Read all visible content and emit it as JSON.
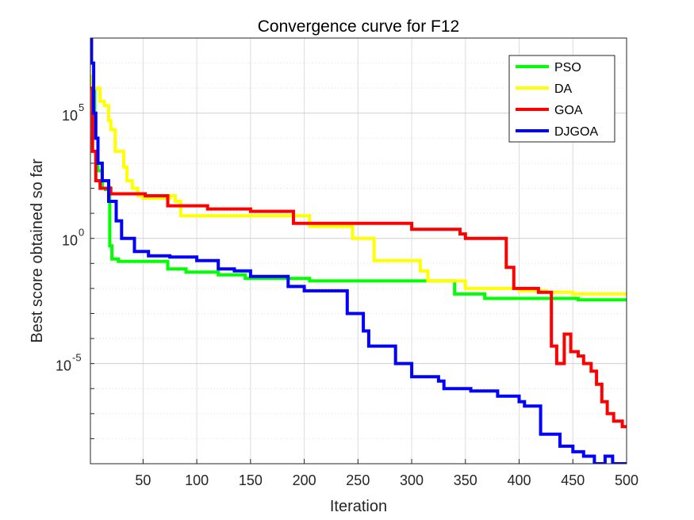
{
  "chart_data": {
    "type": "line",
    "title": "Convergence curve for F12",
    "xlabel": "Iteration",
    "ylabel": "Best score obtained so far",
    "xlim": [
      1,
      500
    ],
    "ylim": [
      1e-09,
      100000000.0
    ],
    "yscale": "log",
    "grid": true,
    "legend_position": "top-right",
    "xticks": [
      50,
      100,
      150,
      200,
      250,
      300,
      350,
      400,
      450,
      500
    ],
    "yticks": [
      {
        "value": 100000.0,
        "base": "10",
        "exp": "5"
      },
      {
        "value": 1,
        "base": "10",
        "exp": "0"
      },
      {
        "value": 1e-05,
        "base": "10",
        "exp": "-5"
      }
    ],
    "series": [
      {
        "name": "PSO",
        "color": "#00ff00",
        "x": [
          1,
          3,
          5,
          8,
          12,
          15,
          18,
          19,
          21,
          27,
          73,
          90,
          120,
          145,
          205,
          333,
          340,
          368,
          455,
          500
        ],
        "y": [
          3000000.0,
          1000000.0,
          10000.0,
          500.0,
          100.0,
          90.0,
          110.0,
          0.5,
          0.15,
          0.12,
          0.06,
          0.045,
          0.035,
          0.025,
          0.02,
          0.02,
          0.006,
          0.004,
          0.0035,
          0.0035
        ]
      },
      {
        "name": "DA",
        "color": "#ffff00",
        "x": [
          1,
          3,
          6,
          10,
          14,
          18,
          20,
          24,
          32,
          35,
          40,
          45,
          50,
          75,
          80,
          85,
          115,
          185,
          205,
          245,
          265,
          290,
          305,
          308,
          315,
          325,
          350,
          400,
          425,
          450,
          475,
          500
        ],
        "y": [
          3000000.0,
          1000000.0,
          1000000.0,
          300000.0,
          200000.0,
          50000.0,
          22000.0,
          3000.0,
          700.0,
          200.0,
          100.0,
          50.0,
          40.0,
          50.0,
          30.0,
          8,
          8,
          8,
          3,
          1,
          0.13,
          0.13,
          0.13,
          0.05,
          0.02,
          0.02,
          0.01,
          0.008,
          0.007,
          0.006,
          0.006,
          0.006
        ]
      },
      {
        "name": "GOA",
        "color": "#ff0000",
        "x": [
          1,
          3,
          6,
          10,
          20,
          52,
          73,
          110,
          150,
          190,
          200,
          240,
          300,
          345,
          350,
          385,
          388,
          395,
          418,
          425,
          430,
          435,
          442,
          448,
          455,
          460,
          467,
          472,
          477,
          482,
          488,
          492,
          496,
          500
        ],
        "y": [
          1000000.0,
          3000.0,
          200.0,
          100.0,
          60.0,
          50.0,
          20.0,
          15.0,
          12.0,
          4,
          4,
          4,
          2.3,
          1.5,
          1,
          1,
          0.07,
          0.01,
          0.007,
          0.007,
          5e-05,
          1e-05,
          0.00015,
          3e-05,
          2e-05,
          1e-05,
          5e-06,
          1.5e-06,
          3e-07,
          1e-07,
          5e-08,
          5e-08,
          3e-08,
          3e-08
        ]
      },
      {
        "name": "DJGOA",
        "color": "#0000ff",
        "x": [
          1,
          2,
          4,
          6,
          8,
          12,
          18,
          25,
          30,
          42,
          55,
          75,
          100,
          120,
          135,
          150,
          185,
          200,
          240,
          255,
          260,
          265,
          285,
          300,
          325,
          330,
          355,
          380,
          400,
          405,
          420,
          438,
          450,
          460,
          470,
          480,
          487,
          490,
          496,
          500
        ],
        "y": [
          100000000.0,
          10000000.0,
          100000.0,
          10000.0,
          1000.0,
          200.0,
          30.0,
          5,
          1,
          0.3,
          0.2,
          0.18,
          0.13,
          0.06,
          0.05,
          0.03,
          0.012,
          0.008,
          0.001,
          0.0002,
          5e-05,
          5e-05,
          1e-05,
          3e-06,
          2e-06,
          1e-06,
          8e-07,
          5e-07,
          3e-07,
          2e-07,
          1.5e-08,
          5e-09,
          3e-09,
          2e-09,
          1e-09,
          2e-09,
          1e-09,
          1e-09,
          1e-09,
          1e-09
        ]
      }
    ]
  }
}
